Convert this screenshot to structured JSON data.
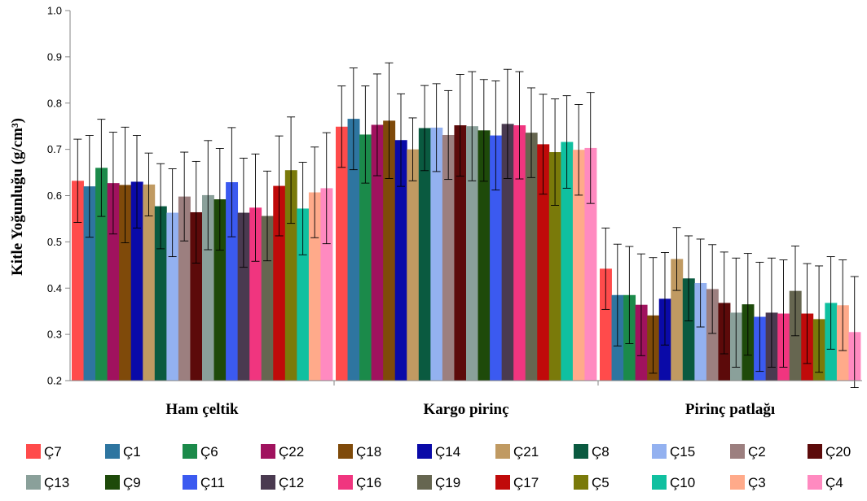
{
  "chart_data": {
    "type": "bar",
    "ylabel": "Kitle Yoğunluğu (g/cm³)",
    "xlabel": "",
    "ylim": [
      0.2,
      1.0
    ],
    "yticks": [
      "0.2",
      "0.3",
      "0.4",
      "0.5",
      "0.6",
      "0.7",
      "0.8",
      "0.9",
      "1.0"
    ],
    "categories": [
      "Ham çeltik",
      "Kargo pirinç",
      "Pirinç patlağı"
    ],
    "legend_position": "bottom",
    "series": [
      {
        "name": "Ç7",
        "color": "#ff4b4b",
        "values": [
          0.632,
          0.749,
          0.442
        ],
        "errors": [
          0.09,
          0.088,
          0.088
        ]
      },
      {
        "name": "Ç1",
        "color": "#2e75a0",
        "values": [
          0.62,
          0.766,
          0.385
        ],
        "errors": [
          0.11,
          0.11,
          0.11
        ]
      },
      {
        "name": "Ç6",
        "color": "#1b8a4a",
        "values": [
          0.66,
          0.732,
          0.385
        ],
        "errors": [
          0.105,
          0.105,
          0.105
        ]
      },
      {
        "name": "Ç22",
        "color": "#a0125e",
        "values": [
          0.627,
          0.753,
          0.364
        ],
        "errors": [
          0.11,
          0.11,
          0.11
        ]
      },
      {
        "name": "Ç18",
        "color": "#7f4a0a",
        "values": [
          0.623,
          0.762,
          0.341
        ],
        "errors": [
          0.125,
          0.125,
          0.125
        ]
      },
      {
        "name": "Ç14",
        "color": "#0a0aa8",
        "values": [
          0.63,
          0.72,
          0.377
        ],
        "errors": [
          0.1,
          0.1,
          0.1
        ]
      },
      {
        "name": "Ç21",
        "color": "#c09a62",
        "values": [
          0.624,
          0.7,
          0.463
        ],
        "errors": [
          0.068,
          0.068,
          0.068
        ]
      },
      {
        "name": "Ç8",
        "color": "#0a5a40",
        "values": [
          0.577,
          0.746,
          0.421
        ],
        "errors": [
          0.092,
          0.092,
          0.092
        ]
      },
      {
        "name": "Ç15",
        "color": "#93b1f0",
        "values": [
          0.563,
          0.747,
          0.411
        ],
        "errors": [
          0.095,
          0.095,
          0.095
        ]
      },
      {
        "name": "Ç2",
        "color": "#9c7f7f",
        "values": [
          0.598,
          0.731,
          0.398
        ],
        "errors": [
          0.096,
          0.096,
          0.096
        ]
      },
      {
        "name": "Ç20",
        "color": "#5c0a0a",
        "values": [
          0.564,
          0.752,
          0.368
        ],
        "errors": [
          0.11,
          0.11,
          0.11
        ]
      },
      {
        "name": "Ç13",
        "color": "#8aa09a",
        "values": [
          0.601,
          0.75,
          0.347
        ],
        "errors": [
          0.118,
          0.118,
          0.118
        ]
      },
      {
        "name": "Ç9",
        "color": "#1e4a0a",
        "values": [
          0.592,
          0.741,
          0.365
        ],
        "errors": [
          0.11,
          0.11,
          0.11
        ]
      },
      {
        "name": "Ç11",
        "color": "#3b5af0",
        "values": [
          0.629,
          0.73,
          0.338
        ],
        "errors": [
          0.118,
          0.118,
          0.118
        ]
      },
      {
        "name": "Ç12",
        "color": "#4a3a50",
        "values": [
          0.563,
          0.755,
          0.347
        ],
        "errors": [
          0.118,
          0.118,
          0.118
        ]
      },
      {
        "name": "Ç16",
        "color": "#f0357f",
        "values": [
          0.574,
          0.752,
          0.345
        ],
        "errors": [
          0.116,
          0.116,
          0.116
        ]
      },
      {
        "name": "Ç19",
        "color": "#666650",
        "values": [
          0.556,
          0.736,
          0.394
        ],
        "errors": [
          0.097,
          0.097,
          0.097
        ]
      },
      {
        "name": "Ç17",
        "color": "#c00a0a",
        "values": [
          0.621,
          0.711,
          0.345
        ],
        "errors": [
          0.108,
          0.108,
          0.108
        ]
      },
      {
        "name": "Ç5",
        "color": "#7a7a0a",
        "values": [
          0.655,
          0.694,
          0.333
        ],
        "errors": [
          0.115,
          0.115,
          0.115
        ]
      },
      {
        "name": "Ç10",
        "color": "#10c0a0",
        "values": [
          0.572,
          0.716,
          0.368
        ],
        "errors": [
          0.1,
          0.1,
          0.1
        ]
      },
      {
        "name": "Ç3",
        "color": "#ffaa8a",
        "values": [
          0.607,
          0.699,
          0.363
        ],
        "errors": [
          0.098,
          0.098,
          0.098
        ]
      },
      {
        "name": "Ç4",
        "color": "#ff8ac0",
        "values": [
          0.616,
          0.703,
          0.305
        ],
        "errors": [
          0.12,
          0.12,
          0.12
        ]
      }
    ]
  }
}
